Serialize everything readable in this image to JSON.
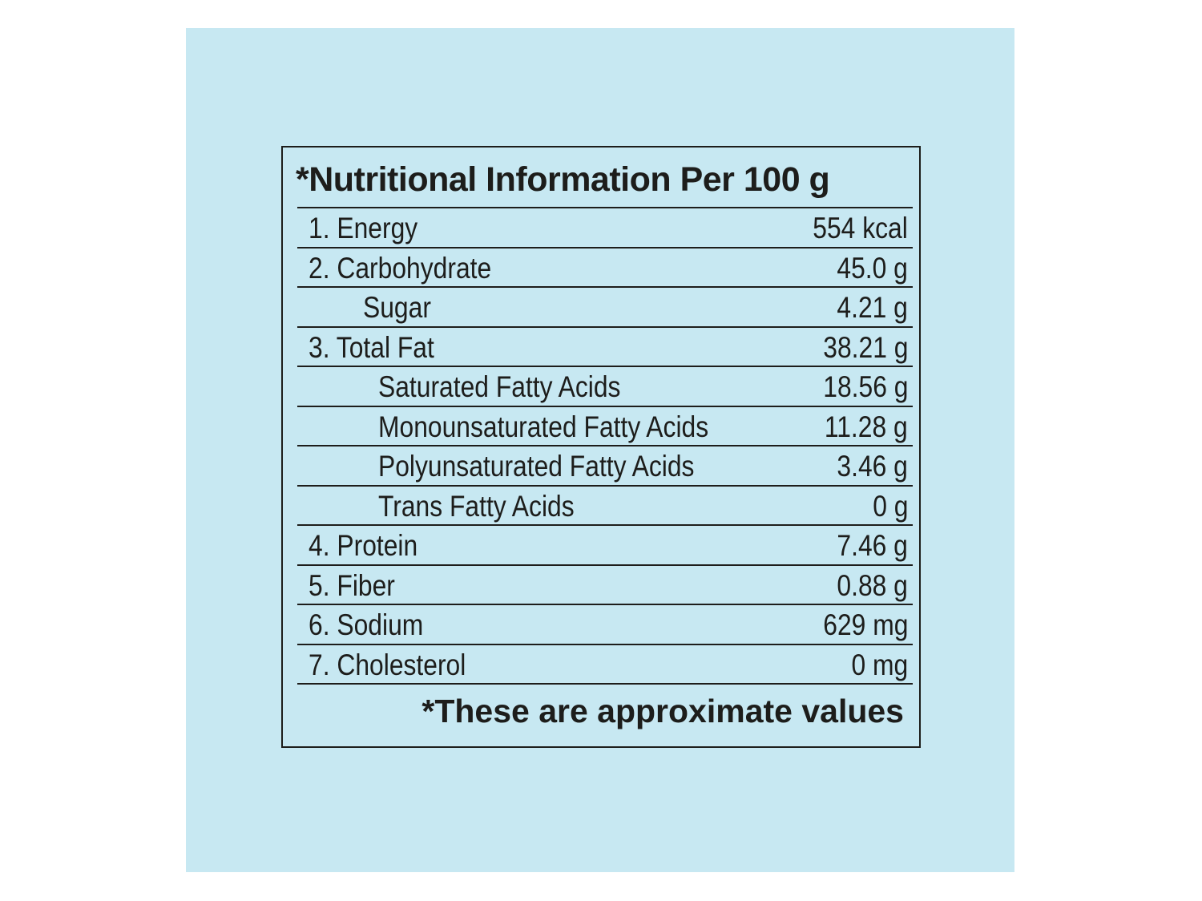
{
  "label": {
    "title": "*Nutritional Information Per 100 g",
    "rows": [
      {
        "name": "1. Energy",
        "value": "554 kcal"
      },
      {
        "name": "2. Carbohydrate",
        "value": "45.0 g"
      },
      {
        "name": "Sugar",
        "value": "4.21 g"
      },
      {
        "name": "3. Total Fat",
        "value": "38.21 g"
      },
      {
        "name": "Saturated Fatty Acids",
        "value": "18.56 g"
      },
      {
        "name": "Monounsaturated Fatty Acids",
        "value": "11.28 g"
      },
      {
        "name": "Polyunsaturated Fatty Acids",
        "value": "3.46 g"
      },
      {
        "name": "Trans Fatty Acids",
        "value": "0 g"
      },
      {
        "name": "4. Protein",
        "value": "7.46 g"
      },
      {
        "name": "5. Fiber",
        "value": "0.88 g"
      },
      {
        "name": "6. Sodium",
        "value": "629 mg"
      },
      {
        "name": "7. Cholesterol",
        "value": "0 mg"
      }
    ],
    "footnote": "*These are approximate values"
  },
  "colors": {
    "background_panel": "#c7e8f2",
    "text": "#1d1d1b"
  }
}
